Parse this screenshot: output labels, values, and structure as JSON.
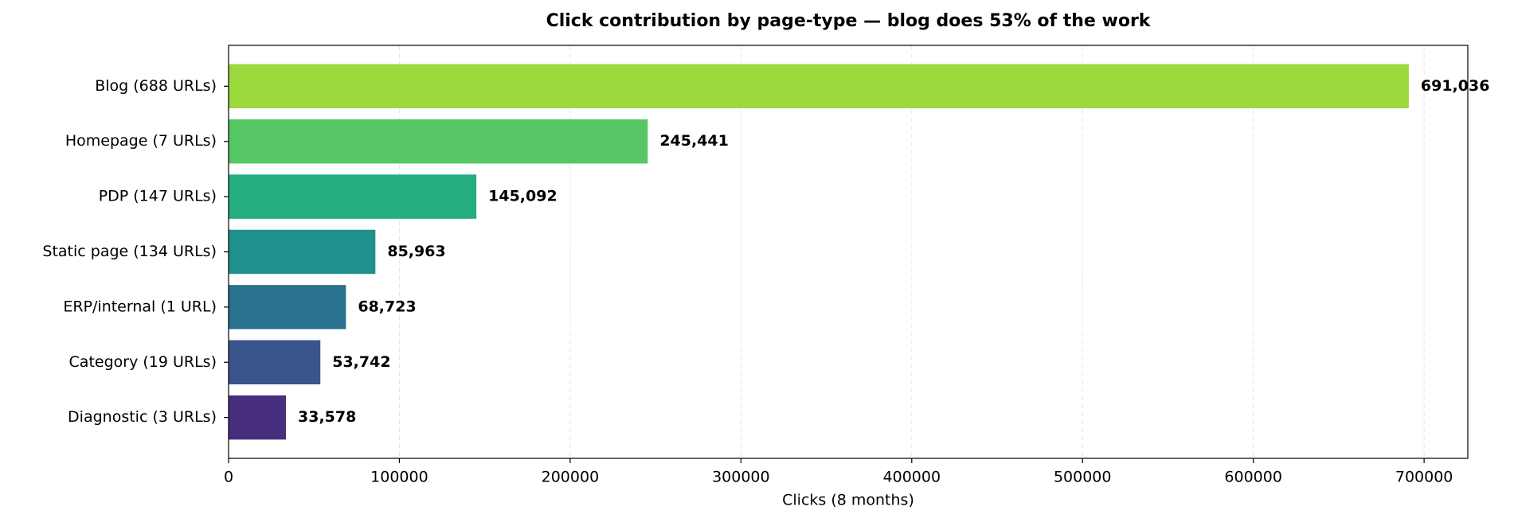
{
  "chart_data": {
    "type": "barh",
    "title": "Click contribution by page-type — blog does 53% of the work",
    "x_label": "Clicks (8 months)",
    "categories": [
      "Blog (688 URLs)",
      "Homepage (7 URLs)",
      "PDP (147 URLs)",
      "Static page (134 URLs)",
      "ERP/internal (1 URL)",
      "Category (19 URLs)",
      "Diagnostic (3 URLs)"
    ],
    "values": [
      691036,
      245441,
      145092,
      85963,
      68723,
      53742,
      33578
    ],
    "value_labels": [
      "691,036",
      "245,441",
      "145,092",
      "85,963",
      "68,723",
      "53,742",
      "33,578"
    ],
    "colors": [
      "#9bd93c",
      "#57c766",
      "#23ad81",
      "#20908c",
      "#2a728e",
      "#3a548c",
      "#472f7d"
    ],
    "xlim": [
      0,
      725588
    ],
    "xticks": [
      0,
      100000,
      200000,
      300000,
      400000,
      500000,
      600000,
      700000
    ],
    "grid": true
  }
}
